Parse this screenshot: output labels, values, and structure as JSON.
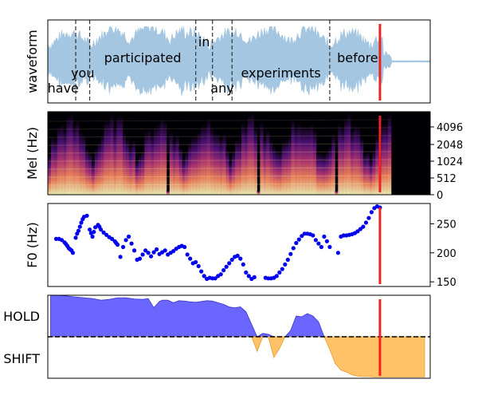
{
  "colors": {
    "waveform": "#a4c6e1",
    "f0_points": "#0000ee",
    "hold_fill": "#6a66ff",
    "shift_fill": "#ffc266",
    "cursor": "#ee2222"
  },
  "chart_data": [
    {
      "type": "area",
      "panel": "waveform",
      "ylabel": "waveform",
      "words": [
        {
          "text": "have",
          "start": 0.0,
          "end": 0.09
        },
        {
          "text": "you",
          "start": 0.09,
          "end": 0.14
        },
        {
          "text": "participated",
          "start": 0.14,
          "end": 0.52
        },
        {
          "text": "in",
          "start": 0.52,
          "end": 0.58
        },
        {
          "text": "any",
          "start": 0.58,
          "end": 0.65
        },
        {
          "text": "experiments",
          "start": 0.65,
          "end": 1.0
        },
        {
          "text": "before",
          "start": 1.0,
          "end": 1.2
        }
      ],
      "word_boundaries": [
        0.09,
        0.14,
        0.52,
        0.58,
        0.65,
        1.0
      ],
      "cursor_time": 1.18,
      "xlim": [
        -0.01,
        1.36
      ],
      "ylim": [
        -1,
        1
      ]
    },
    {
      "type": "heatmap",
      "panel": "mel",
      "ylabel": "Mel (Hz)",
      "yticks": [
        "0",
        "512",
        "1024",
        "2048",
        "4096"
      ],
      "cursor_time": 1.18
    },
    {
      "type": "scatter",
      "panel": "f0",
      "ylabel": "F0 (Hz)",
      "yticks": [
        150,
        200,
        250
      ],
      "ylim": [
        142,
        285
      ],
      "xlim": [
        -0.01,
        1.36
      ],
      "cursor_time": 1.18,
      "x": [
        0.02,
        0.03,
        0.04,
        0.05,
        0.055,
        0.06,
        0.065,
        0.07,
        0.075,
        0.08,
        0.09,
        0.095,
        0.1,
        0.105,
        0.11,
        0.115,
        0.12,
        0.13,
        0.14,
        0.145,
        0.15,
        0.155,
        0.16,
        0.17,
        0.175,
        0.18,
        0.19,
        0.2,
        0.21,
        0.22,
        0.23,
        0.235,
        0.24,
        0.25,
        0.26,
        0.27,
        0.28,
        0.29,
        0.3,
        0.31,
        0.32,
        0.33,
        0.34,
        0.35,
        0.36,
        0.37,
        0.38,
        0.39,
        0.4,
        0.41,
        0.42,
        0.43,
        0.44,
        0.45,
        0.46,
        0.47,
        0.48,
        0.49,
        0.5,
        0.51,
        0.52,
        0.53,
        0.54,
        0.55,
        0.56,
        0.57,
        0.58,
        0.59,
        0.6,
        0.61,
        0.62,
        0.63,
        0.64,
        0.65,
        0.66,
        0.67,
        0.68,
        0.69,
        0.7,
        0.71,
        0.72,
        0.73,
        0.77,
        0.78,
        0.79,
        0.8,
        0.81,
        0.82,
        0.83,
        0.84,
        0.85,
        0.86,
        0.87,
        0.88,
        0.89,
        0.9,
        0.91,
        0.92,
        0.93,
        0.94,
        0.95,
        0.96,
        0.97,
        0.98,
        0.99,
        1.0,
        1.03,
        1.04,
        1.05,
        1.06,
        1.07,
        1.08,
        1.09,
        1.1,
        1.11,
        1.12,
        1.13,
        1.14,
        1.15,
        1.16,
        1.17,
        1.18
      ],
      "y": [
        224,
        224,
        222,
        218,
        215,
        212,
        208,
        206,
        204,
        200,
        226,
        233,
        238,
        245,
        252,
        258,
        262,
        264,
        240,
        234,
        228,
        236,
        244,
        248,
        245,
        240,
        235,
        231,
        227,
        224,
        220,
        217,
        214,
        193,
        210,
        222,
        228,
        216,
        204,
        188,
        190,
        197,
        204,
        200,
        194,
        201,
        206,
        198,
        201,
        204,
        197,
        200,
        203,
        207,
        210,
        212,
        210,
        197,
        190,
        182,
        184,
        177,
        168,
        160,
        155,
        157,
        156,
        156,
        160,
        163,
        170,
        176,
        182,
        188,
        193,
        195,
        190,
        180,
        166,
        160,
        155,
        158,
        157,
        156,
        156,
        157,
        160,
        166,
        172,
        180,
        188,
        198,
        208,
        217,
        223,
        229,
        233,
        233,
        232,
        230,
        222,
        216,
        210,
        228,
        220,
        210,
        200,
        228,
        230,
        230,
        231,
        232,
        234,
        237,
        241,
        245,
        252,
        260,
        270,
        277,
        280,
        278
      ]
    },
    {
      "type": "area",
      "panel": "turn_taking",
      "categories": [
        "HOLD",
        "SHIFT"
      ],
      "xlim": [
        -0.01,
        1.36
      ],
      "ylim": [
        -1,
        1
      ],
      "baseline": 0,
      "cursor_time": 1.18,
      "x": [
        0.0,
        0.03,
        0.06,
        0.09,
        0.12,
        0.15,
        0.18,
        0.21,
        0.24,
        0.27,
        0.3,
        0.33,
        0.35,
        0.37,
        0.39,
        0.4,
        0.42,
        0.44,
        0.46,
        0.48,
        0.5,
        0.52,
        0.54,
        0.56,
        0.58,
        0.6,
        0.62,
        0.64,
        0.66,
        0.68,
        0.7,
        0.72,
        0.74,
        0.76,
        0.78,
        0.8,
        0.82,
        0.84,
        0.86,
        0.88,
        0.9,
        0.92,
        0.94,
        0.96,
        0.98,
        1.0,
        1.02,
        1.04,
        1.06,
        1.08,
        1.1,
        1.12,
        1.14,
        1.16,
        1.18,
        1.2,
        1.22,
        1.24,
        1.26,
        1.28,
        1.3,
        1.32,
        1.34
      ],
      "y": [
        1.0,
        1.0,
        0.98,
        0.96,
        0.94,
        0.92,
        0.88,
        0.9,
        0.94,
        0.94,
        0.91,
        0.9,
        0.92,
        0.7,
        0.85,
        0.88,
        0.88,
        0.82,
        0.87,
        0.86,
        0.84,
        0.83,
        0.85,
        0.87,
        0.86,
        0.82,
        0.78,
        0.72,
        0.7,
        0.72,
        0.6,
        0.3,
        -0.35,
        0.08,
        0.06,
        -0.5,
        -0.28,
        0.0,
        0.15,
        0.5,
        0.48,
        0.56,
        0.5,
        0.36,
        0.0,
        -0.3,
        -0.65,
        -0.8,
        -0.85,
        -0.92,
        -0.95,
        -0.96,
        -0.96,
        -0.97,
        -0.97,
        -0.97,
        -0.97,
        -0.97,
        -0.97,
        -0.97,
        -0.97,
        -0.97,
        -0.97
      ]
    }
  ]
}
